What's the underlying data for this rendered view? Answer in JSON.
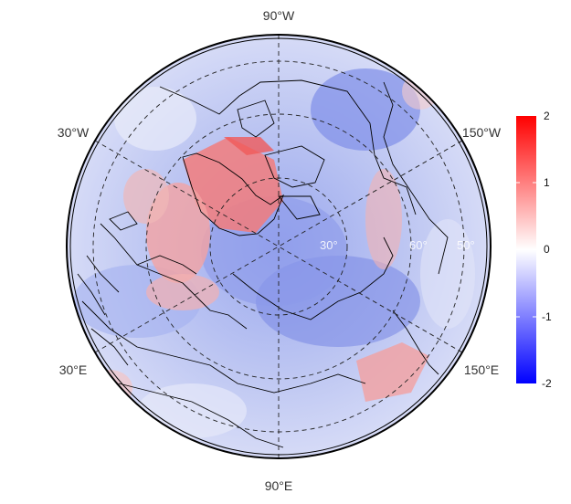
{
  "map": {
    "projection": "north polar stereographic",
    "longitude_labels": {
      "top": "90°W",
      "bottom": "90°E",
      "upper_left": "30°W",
      "lower_left": "30°E",
      "upper_right": "150°W",
      "lower_right": "150°E"
    },
    "latitude_labels": [
      "30°",
      "60°",
      "50°"
    ],
    "colors": {
      "neg": "#0000ff",
      "zero": "#ffffff",
      "pos": "#ff0000",
      "graticule": "#222222",
      "coast": "#000000"
    }
  },
  "colorbar": {
    "min": -2,
    "max": 2,
    "ticks": [
      "2",
      "1",
      "0",
      "-1",
      "-2"
    ]
  }
}
